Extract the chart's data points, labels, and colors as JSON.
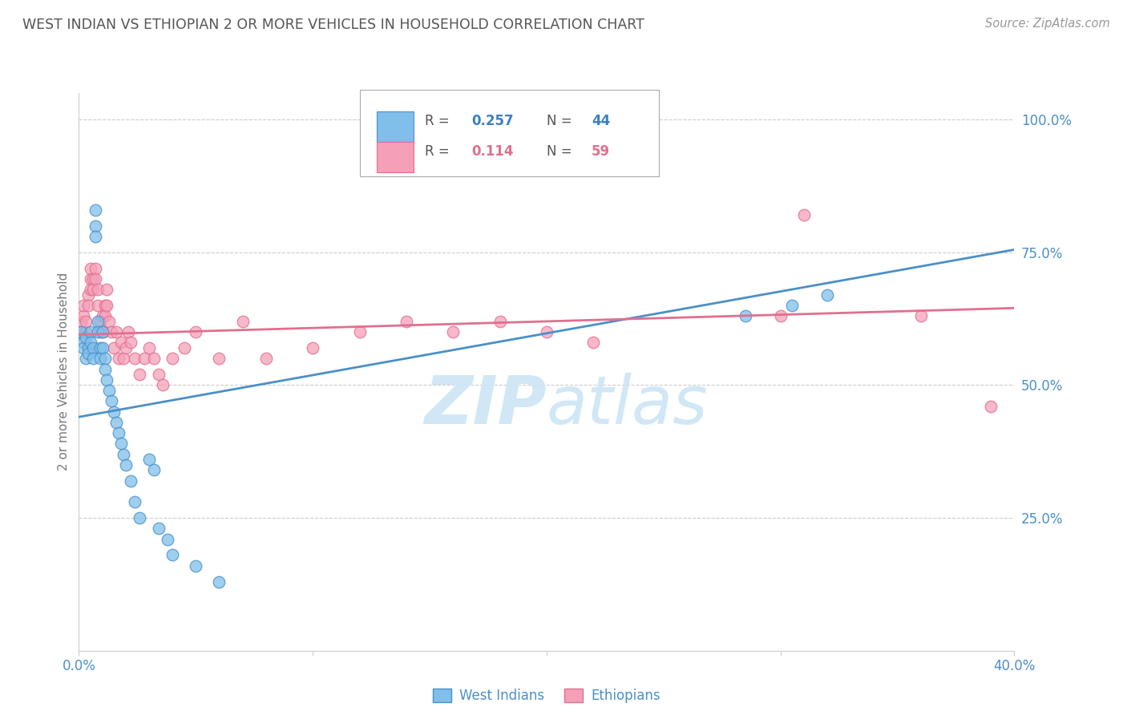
{
  "title": "WEST INDIAN VS ETHIOPIAN 2 OR MORE VEHICLES IN HOUSEHOLD CORRELATION CHART",
  "source": "Source: ZipAtlas.com",
  "ylabel": "2 or more Vehicles in Household",
  "ytick_labels": [
    "100.0%",
    "75.0%",
    "50.0%",
    "25.0%"
  ],
  "ytick_values": [
    1.0,
    0.75,
    0.5,
    0.25
  ],
  "legend_label1": "West Indians",
  "legend_label2": "Ethiopians",
  "R1": 0.257,
  "N1": 44,
  "R2": 0.114,
  "N2": 59,
  "color_blue": "#7fbfea",
  "color_pink": "#f5a0b8",
  "color_blue_line": "#4a90c8",
  "color_pink_line": "#e07090",
  "color_blue_text": "#3a80c0",
  "color_pink_text": "#e07090",
  "color_axis_text": "#4a90c8",
  "watermark_color": "#cce5f5",
  "title_color": "#555555",
  "source_color": "#999999",
  "grid_color": "#cccccc",
  "background_color": "#ffffff",
  "xmin": 0.0,
  "xmax": 0.4,
  "ymin": 0.0,
  "ymax": 1.05,
  "wi_line_x0": 0.0,
  "wi_line_y0": 0.44,
  "wi_line_x1": 0.4,
  "wi_line_y1": 0.755,
  "eth_line_x0": 0.0,
  "eth_line_y0": 0.595,
  "eth_line_x1": 0.4,
  "eth_line_y1": 0.645,
  "west_indians_x": [
    0.001,
    0.002,
    0.002,
    0.003,
    0.003,
    0.004,
    0.004,
    0.005,
    0.005,
    0.006,
    0.006,
    0.007,
    0.007,
    0.007,
    0.008,
    0.008,
    0.009,
    0.009,
    0.01,
    0.01,
    0.011,
    0.011,
    0.012,
    0.013,
    0.014,
    0.015,
    0.016,
    0.017,
    0.018,
    0.019,
    0.02,
    0.022,
    0.024,
    0.026,
    0.03,
    0.032,
    0.034,
    0.038,
    0.04,
    0.05,
    0.06,
    0.285,
    0.305,
    0.32
  ],
  "west_indians_y": [
    0.6,
    0.58,
    0.57,
    0.55,
    0.59,
    0.57,
    0.56,
    0.6,
    0.58,
    0.57,
    0.55,
    0.83,
    0.8,
    0.78,
    0.62,
    0.6,
    0.57,
    0.55,
    0.6,
    0.57,
    0.55,
    0.53,
    0.51,
    0.49,
    0.47,
    0.45,
    0.43,
    0.41,
    0.39,
    0.37,
    0.35,
    0.32,
    0.28,
    0.25,
    0.36,
    0.34,
    0.23,
    0.21,
    0.18,
    0.16,
    0.13,
    0.63,
    0.65,
    0.67
  ],
  "ethiopians_x": [
    0.001,
    0.001,
    0.002,
    0.002,
    0.003,
    0.003,
    0.004,
    0.004,
    0.005,
    0.005,
    0.005,
    0.006,
    0.006,
    0.007,
    0.007,
    0.008,
    0.008,
    0.009,
    0.009,
    0.01,
    0.01,
    0.011,
    0.011,
    0.012,
    0.012,
    0.013,
    0.014,
    0.015,
    0.016,
    0.017,
    0.018,
    0.019,
    0.02,
    0.021,
    0.022,
    0.024,
    0.026,
    0.028,
    0.03,
    0.032,
    0.034,
    0.036,
    0.04,
    0.045,
    0.05,
    0.06,
    0.07,
    0.08,
    0.1,
    0.12,
    0.14,
    0.16,
    0.18,
    0.2,
    0.22,
    0.3,
    0.31,
    0.36,
    0.39
  ],
  "ethiopians_y": [
    0.6,
    0.62,
    0.63,
    0.65,
    0.6,
    0.62,
    0.67,
    0.65,
    0.7,
    0.68,
    0.72,
    0.7,
    0.68,
    0.72,
    0.7,
    0.68,
    0.65,
    0.62,
    0.6,
    0.63,
    0.6,
    0.65,
    0.63,
    0.68,
    0.65,
    0.62,
    0.6,
    0.57,
    0.6,
    0.55,
    0.58,
    0.55,
    0.57,
    0.6,
    0.58,
    0.55,
    0.52,
    0.55,
    0.57,
    0.55,
    0.52,
    0.5,
    0.55,
    0.57,
    0.6,
    0.55,
    0.62,
    0.55,
    0.57,
    0.6,
    0.62,
    0.6,
    0.62,
    0.6,
    0.58,
    0.63,
    0.82,
    0.63,
    0.46
  ]
}
